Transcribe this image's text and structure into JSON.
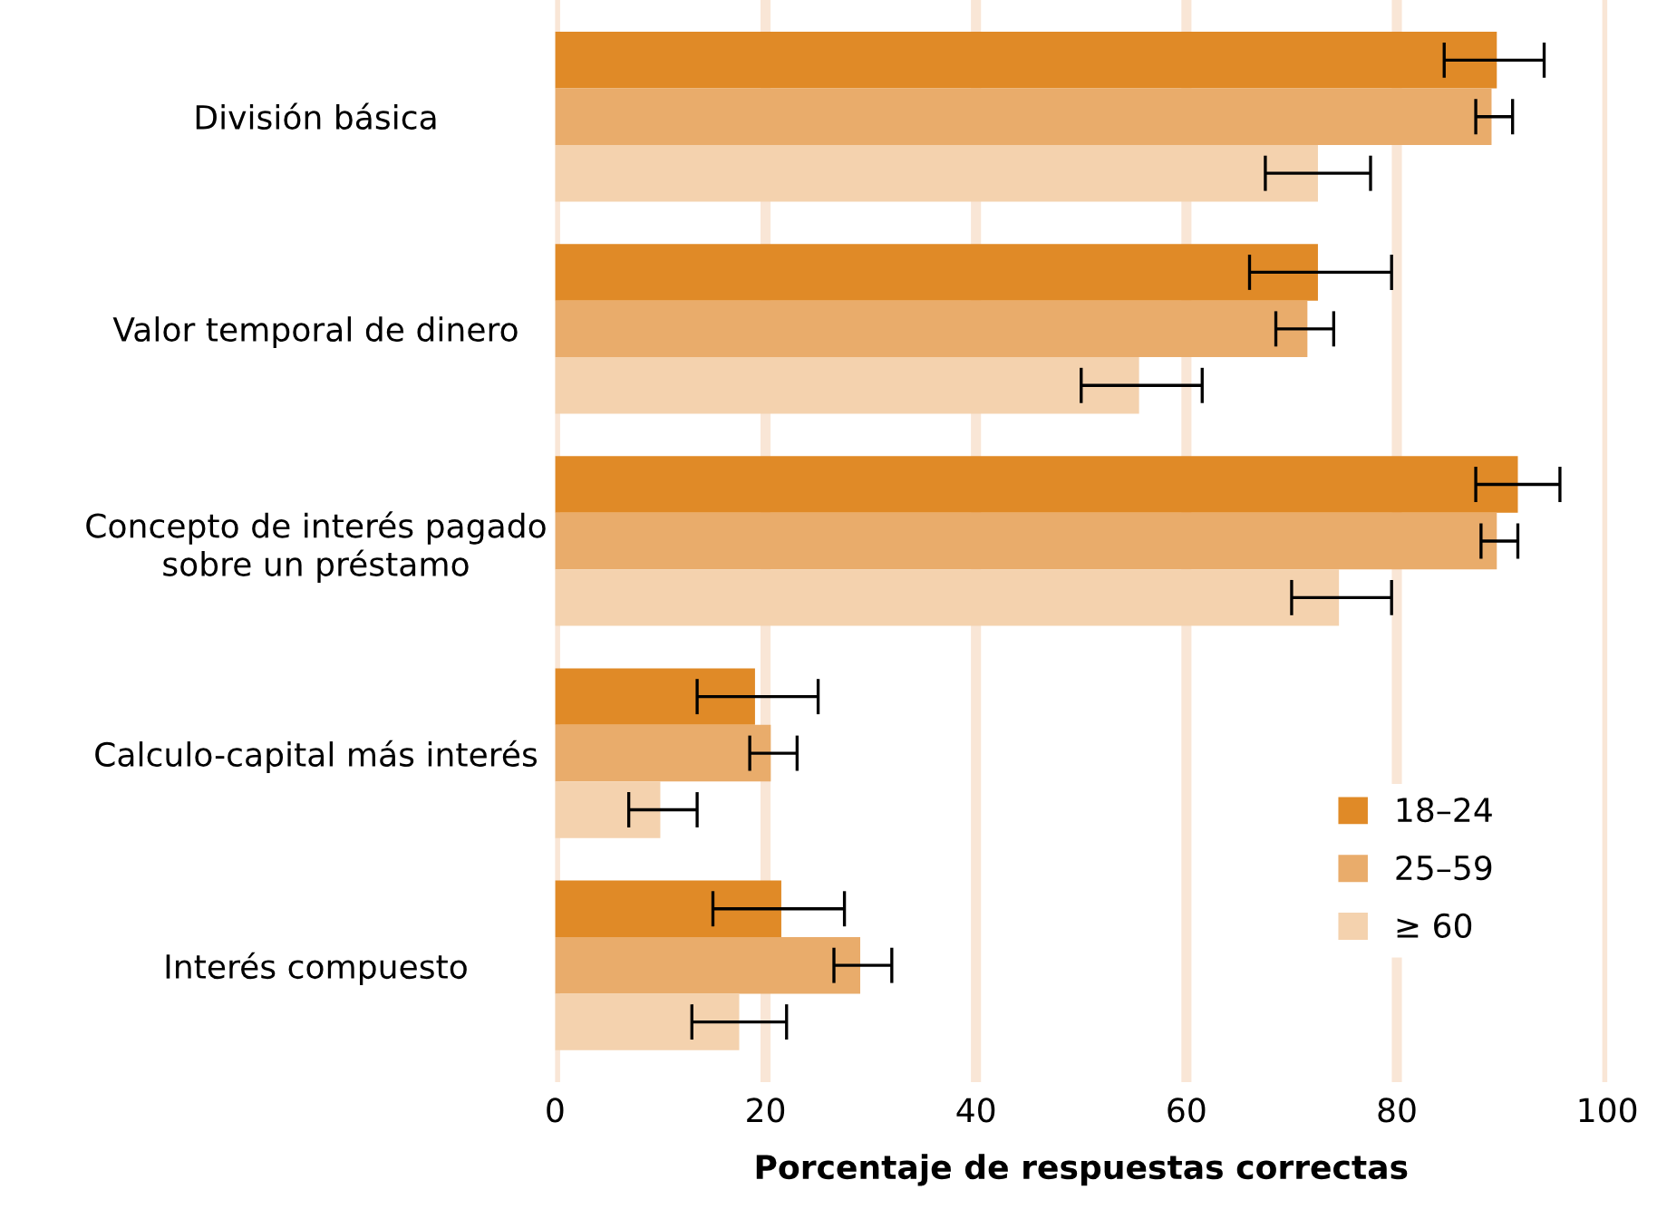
{
  "chart_data": {
    "type": "bar",
    "orientation": "horizontal",
    "xlabel": "Porcentaje de respuestas correctas",
    "categories": [
      "División básica",
      "Valor temporal de dinero",
      "Concepto de interés pagado\nsobre un préstamo",
      "Calculo-capital más interés",
      "Interés compuesto"
    ],
    "series": [
      {
        "name": "18–24",
        "color": "#e08a27",
        "values": [
          89.5,
          72.5,
          91.5,
          19,
          21.5
        ],
        "errors": [
          [
            84.5,
            94
          ],
          [
            66,
            79.5
          ],
          [
            87.5,
            95.5
          ],
          [
            13.5,
            25
          ],
          [
            15,
            27.5
          ]
        ]
      },
      {
        "name": "25–59",
        "color": "#e9ac6b",
        "values": [
          89,
          71.5,
          89.5,
          20.5,
          29
        ],
        "errors": [
          [
            87.5,
            91
          ],
          [
            68.5,
            74
          ],
          [
            88,
            91.5
          ],
          [
            18.5,
            23
          ],
          [
            26.5,
            32
          ]
        ]
      },
      {
        "name": "≥ 60",
        "color": "#f4d2ae",
        "values": [
          72.5,
          55.5,
          74.5,
          10,
          17.5
        ],
        "errors": [
          [
            67.5,
            77.5
          ],
          [
            50,
            61.5
          ],
          [
            70,
            79.5
          ],
          [
            7,
            13.5
          ],
          [
            13,
            22
          ]
        ]
      }
    ],
    "xlim": [
      0,
      100
    ],
    "xticks": [
      0,
      20,
      40,
      60,
      80,
      100
    ],
    "grid": "x",
    "legend": "bottom right"
  }
}
